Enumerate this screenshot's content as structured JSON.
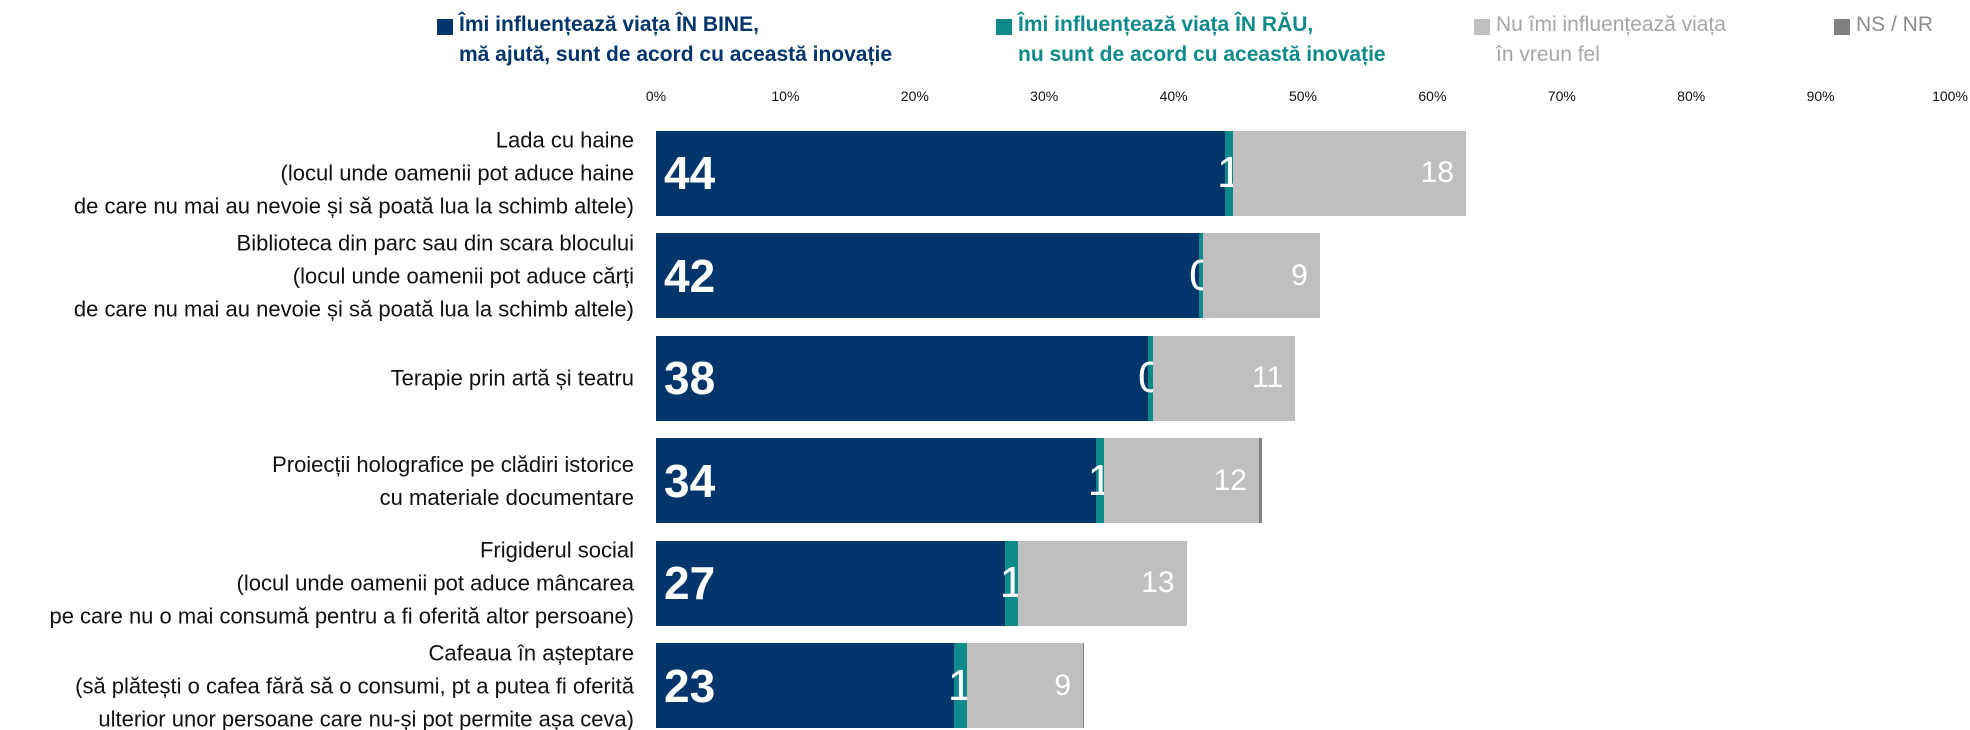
{
  "chart_data": {
    "type": "stacked-barh",
    "categories": [
      "Lada cu haine\n(locul unde oamenii pot aduce haine\nde care nu mai au nevoie și să poată lua la schimb altele)",
      "Biblioteca din parc sau din scara blocului\n(locul unde oamenii pot aduce cărți\nde care nu mai au nevoie și să poată lua la schimb altele)",
      "Terapie prin artă și teatru",
      "Proiecții holografice pe clădiri istorice\ncu materiale documentare",
      "Frigiderul social\n(locul unde oamenii pot aduce mâncarea\npe care nu o mai consumă pentru a fi oferită altor persoane)",
      "Cafeaua în așteptare\n(să plătești o cafea fără să o consumi, pt a putea fi oferită\nulterior unor persoane care nu-și pot permite așa ceva)"
    ],
    "series": [
      {
        "name": "Îmi influențează viața ÎN BINE,\nmă ajută, sunt de acord cu această inovație",
        "color": "#02356a",
        "values": [
          44,
          42,
          38,
          34,
          27,
          23
        ]
      },
      {
        "name": "Îmi influențează viața ÎN RĂU,\nnu sunt de acord cu această inovație",
        "color": "#0e8a8a",
        "values": [
          0.6,
          0.3,
          0.4,
          0.6,
          1,
          1
        ],
        "value_labels": [
          "1",
          "0",
          "0",
          "1",
          "1",
          "1"
        ]
      },
      {
        "name": "Nu îmi influențează viața\nîn vreun fel",
        "color": "#bfbfbf",
        "values": [
          18,
          9,
          11,
          12,
          13,
          9
        ]
      },
      {
        "name": "NS / NR",
        "color": "#808080",
        "values": [
          0,
          0,
          0,
          0.2,
          0,
          0.1
        ]
      }
    ],
    "xlim": [
      0,
      100
    ],
    "xticks": [
      {
        "value": 0,
        "label": "0%"
      },
      {
        "value": 10,
        "label": "10%"
      },
      {
        "value": 20,
        "label": "20%"
      },
      {
        "value": 30,
        "label": "30%"
      },
      {
        "value": 40,
        "label": "40%"
      },
      {
        "value": 50,
        "label": "50%"
      },
      {
        "value": 60,
        "label": "60%"
      },
      {
        "value": 70,
        "label": "70%"
      },
      {
        "value": 80,
        "label": "80%"
      },
      {
        "value": 90,
        "label": "90%"
      },
      {
        "value": 100,
        "label": "100%"
      }
    ]
  }
}
